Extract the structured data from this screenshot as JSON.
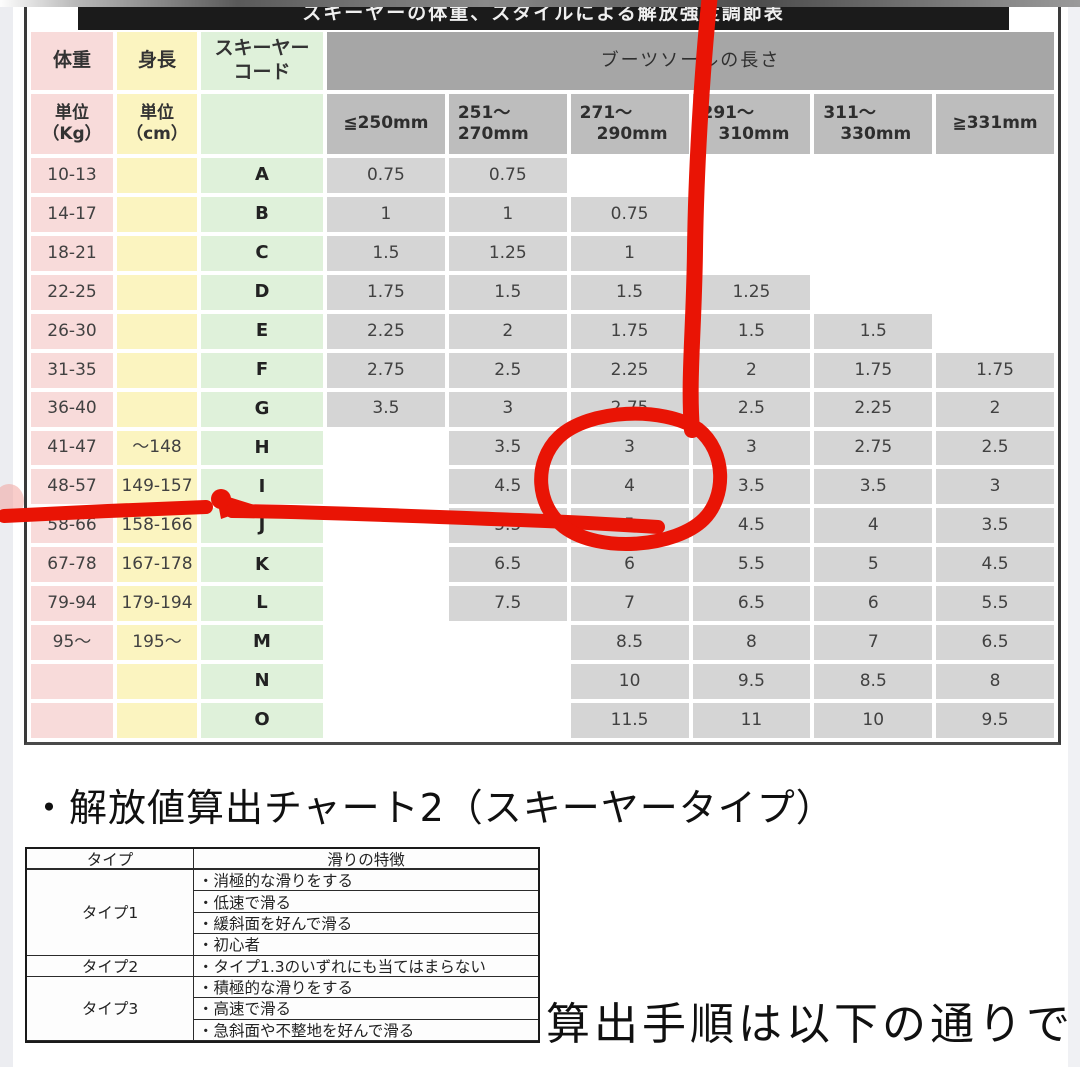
{
  "title_bar": {
    "text": "スキーヤーの体重、スタイルによる解放強度調節表"
  },
  "main_table": {
    "col_headers": {
      "weight": "体重",
      "height": "身長",
      "code": "スキーヤー\nコード",
      "boot_sole": "ブーツソールの長さ"
    },
    "unit_row": {
      "weight": "単位\n（Kg）",
      "height": "単位\n（cm）"
    },
    "sole_lengths": [
      "≦250mm",
      "251～\n270mm",
      "271～\n  290mm",
      "291～\n  310mm",
      "311～\n  330mm",
      "≧331mm"
    ],
    "rows": [
      {
        "weight": "10-13",
        "height": "",
        "code": "A",
        "values": [
          "0.75",
          "0.75",
          "",
          "",
          "",
          ""
        ]
      },
      {
        "weight": "14-17",
        "height": "",
        "code": "B",
        "values": [
          "1",
          "1",
          "0.75",
          "",
          "",
          ""
        ]
      },
      {
        "weight": "18-21",
        "height": "",
        "code": "C",
        "values": [
          "1.5",
          "1.25",
          "1",
          "",
          "",
          ""
        ]
      },
      {
        "weight": "22-25",
        "height": "",
        "code": "D",
        "values": [
          "1.75",
          "1.5",
          "1.5",
          "1.25",
          "",
          ""
        ]
      },
      {
        "weight": "26-30",
        "height": "",
        "code": "E",
        "values": [
          "2.25",
          "2",
          "1.75",
          "1.5",
          "1.5",
          ""
        ]
      },
      {
        "weight": "31-35",
        "height": "",
        "code": "F",
        "values": [
          "2.75",
          "2.5",
          "2.25",
          "2",
          "1.75",
          "1.75"
        ]
      },
      {
        "weight": "36-40",
        "height": "",
        "code": "G",
        "values": [
          "3.5",
          "3",
          "2.75",
          "2.5",
          "2.25",
          "2"
        ]
      },
      {
        "weight": "41-47",
        "height": "～148",
        "code": "H",
        "values": [
          "",
          "3.5",
          "3",
          "3",
          "2.75",
          "2.5"
        ]
      },
      {
        "weight": "48-57",
        "height": "149-157",
        "code": "I",
        "values": [
          "",
          "4.5",
          "4",
          "3.5",
          "3.5",
          "3"
        ]
      },
      {
        "weight": "58-66",
        "height": "158-166",
        "code": "J",
        "values": [
          "",
          "5.5",
          "5",
          "4.5",
          "4",
          "3.5"
        ]
      },
      {
        "weight": "67-78",
        "height": "167-178",
        "code": "K",
        "values": [
          "",
          "6.5",
          "6",
          "5.5",
          "5",
          "4.5"
        ]
      },
      {
        "weight": "79-94",
        "height": "179-194",
        "code": "L",
        "values": [
          "",
          "7.5",
          "7",
          "6.5",
          "6",
          "5.5"
        ]
      },
      {
        "weight": "95～",
        "height": "195～",
        "code": "M",
        "values": [
          "",
          "",
          "8.5",
          "8",
          "7",
          "6.5"
        ]
      },
      {
        "weight": "",
        "height": "",
        "code": "N",
        "values": [
          "",
          "",
          "10",
          "9.5",
          "8.5",
          "8"
        ]
      },
      {
        "weight": "",
        "height": "",
        "code": "O",
        "values": [
          "",
          "",
          "11.5",
          "11",
          "10",
          "9.5"
        ]
      }
    ]
  },
  "chart2": {
    "bullet_title": "・解放値算出チャート2（スキーヤータイプ）",
    "type_table": {
      "headers": [
        "タイプ",
        "滑りの特徴"
      ],
      "groups": [
        {
          "type": "タイプ1",
          "features": [
            "・消極的な滑りをする",
            "・低速で滑る",
            "・緩斜面を好んで滑る",
            "・初心者"
          ]
        },
        {
          "type": "タイプ2",
          "features": [
            "・タイプ1.3のいずれにも当てはまらない"
          ]
        },
        {
          "type": "タイプ3",
          "features": [
            "・積極的な滑りをする",
            "・高速で滑る",
            "・急斜面や不整地を好んで滑る"
          ]
        }
      ]
    },
    "footer_text": "算出手順は以下の通りで"
  },
  "annotations": {
    "highlight_color": "#e91405",
    "circled_rows": [
      "H",
      "I"
    ],
    "circled_column": "271～290mm",
    "circled_values": [
      "3",
      "4"
    ]
  },
  "colors": {
    "weight_col": "#f8dbda",
    "height_col": "#fbf4c0",
    "code_col": "#dff1da",
    "value_cell": "#d5d5d5",
    "sole_header": "#bdbdbd",
    "banner": "#a6a6a6",
    "title_bar_bg": "#1b1b1b"
  }
}
